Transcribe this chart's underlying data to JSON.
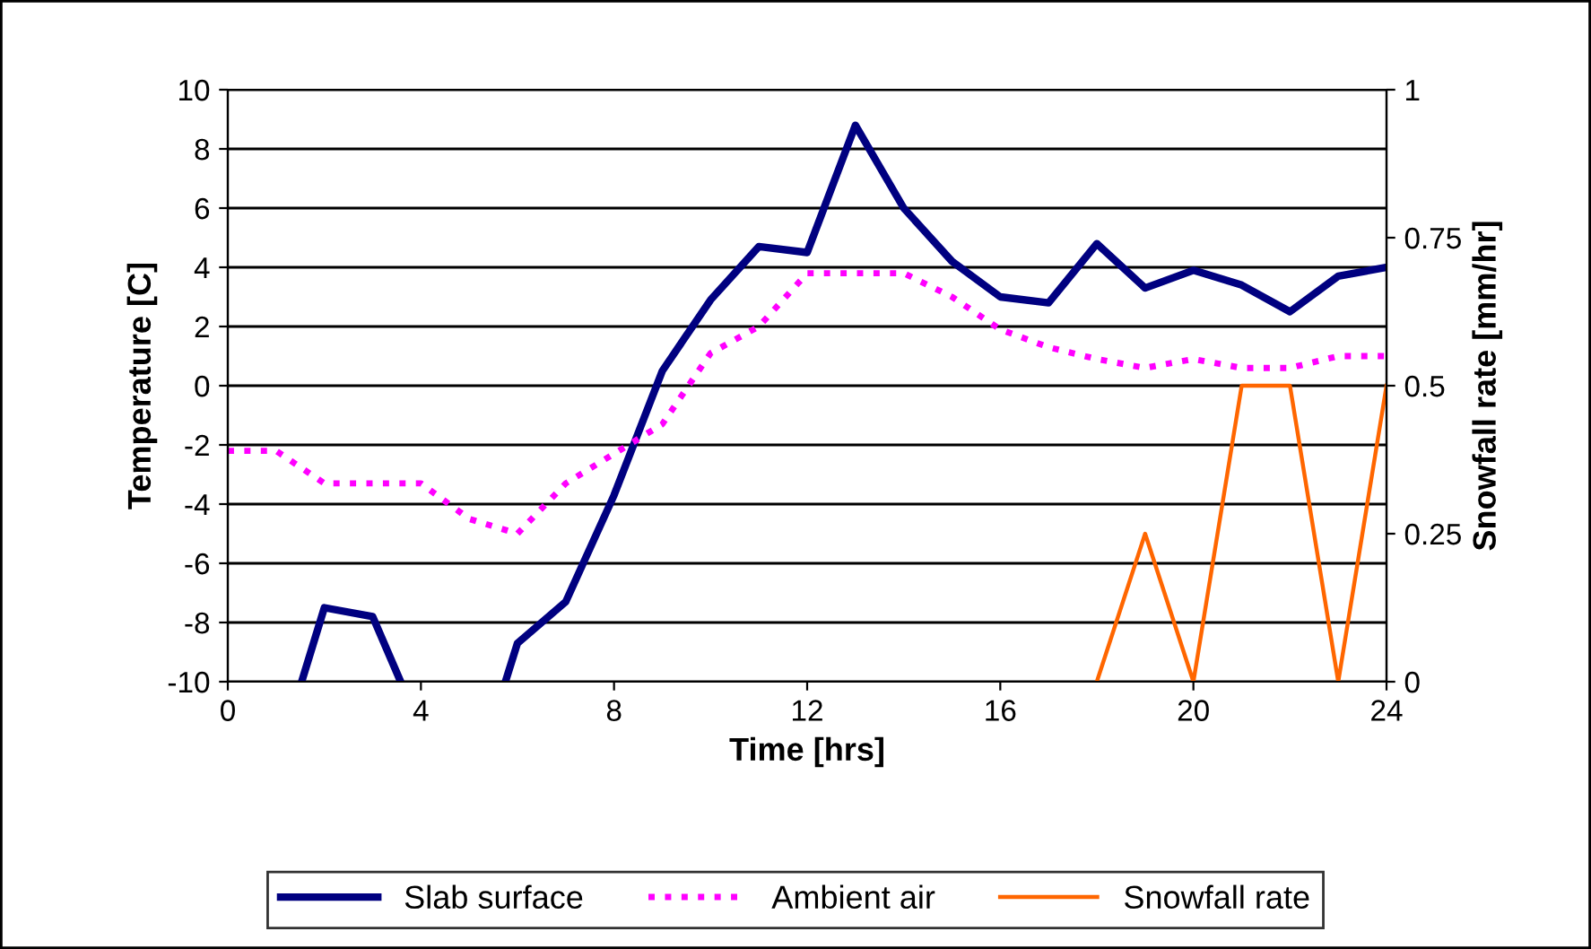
{
  "chart_data": {
    "type": "line",
    "xlabel": "Time [hrs]",
    "ylabel": "Temperature [C]",
    "y2label": "Snowfall rate [mm/hr]",
    "xlim": [
      0,
      24
    ],
    "xticks": [
      0,
      4,
      8,
      12,
      16,
      20,
      24
    ],
    "ylim": [
      -10,
      10
    ],
    "yticks": [
      -10,
      -8,
      -6,
      -4,
      -2,
      0,
      2,
      4,
      6,
      8,
      10
    ],
    "y2lim": [
      0,
      1
    ],
    "y2ticks": [
      0,
      0.25,
      0.5,
      0.75,
      1
    ],
    "grid": "y",
    "legend": "bottom",
    "marker": "none",
    "series": [
      {
        "name": "Slab surface",
        "color": "#000080",
        "line_style": "solid",
        "x": [
          1.53,
          2,
          3,
          3.58,
          4.5,
          5.75,
          6,
          7,
          8,
          9,
          10,
          11,
          12,
          13,
          14,
          15,
          16,
          17,
          18,
          19,
          20,
          21,
          22,
          23,
          24
        ],
        "values": [
          -10,
          -7.5,
          -7.8,
          -10,
          null,
          -10,
          -8.7,
          -7.3,
          -3.7,
          0.5,
          2.9,
          4.7,
          4.5,
          8.8,
          6.0,
          4.2,
          3.0,
          2.8,
          4.8,
          3.3,
          3.9,
          3.4,
          2.5,
          3.7,
          4.0
        ]
      },
      {
        "name": "Ambient air",
        "color": "#ff00ff",
        "line_style": "dotted",
        "x": [
          0,
          1,
          2,
          3,
          4,
          5,
          6,
          7,
          8,
          9,
          10,
          11,
          12,
          13,
          14,
          15,
          16,
          17,
          18,
          19,
          20,
          21,
          22,
          23,
          24
        ],
        "values": [
          -2.2,
          -2.2,
          -3.3,
          -3.3,
          -3.3,
          -4.5,
          -5.0,
          -3.3,
          -2.3,
          -1.3,
          1.1,
          2.0,
          3.8,
          3.8,
          3.8,
          3.0,
          1.9,
          1.3,
          0.9,
          0.6,
          0.9,
          0.6,
          0.6,
          1.0,
          1.0
        ]
      },
      {
        "name": "Snowfall rate",
        "color": "#ff6600",
        "line_style": "solid",
        "axis": "y2",
        "x": [
          18,
          19,
          20,
          21,
          22,
          23,
          24
        ],
        "values": [
          0,
          0.25,
          0,
          0.5,
          0.5,
          0,
          0.5
        ]
      }
    ]
  }
}
